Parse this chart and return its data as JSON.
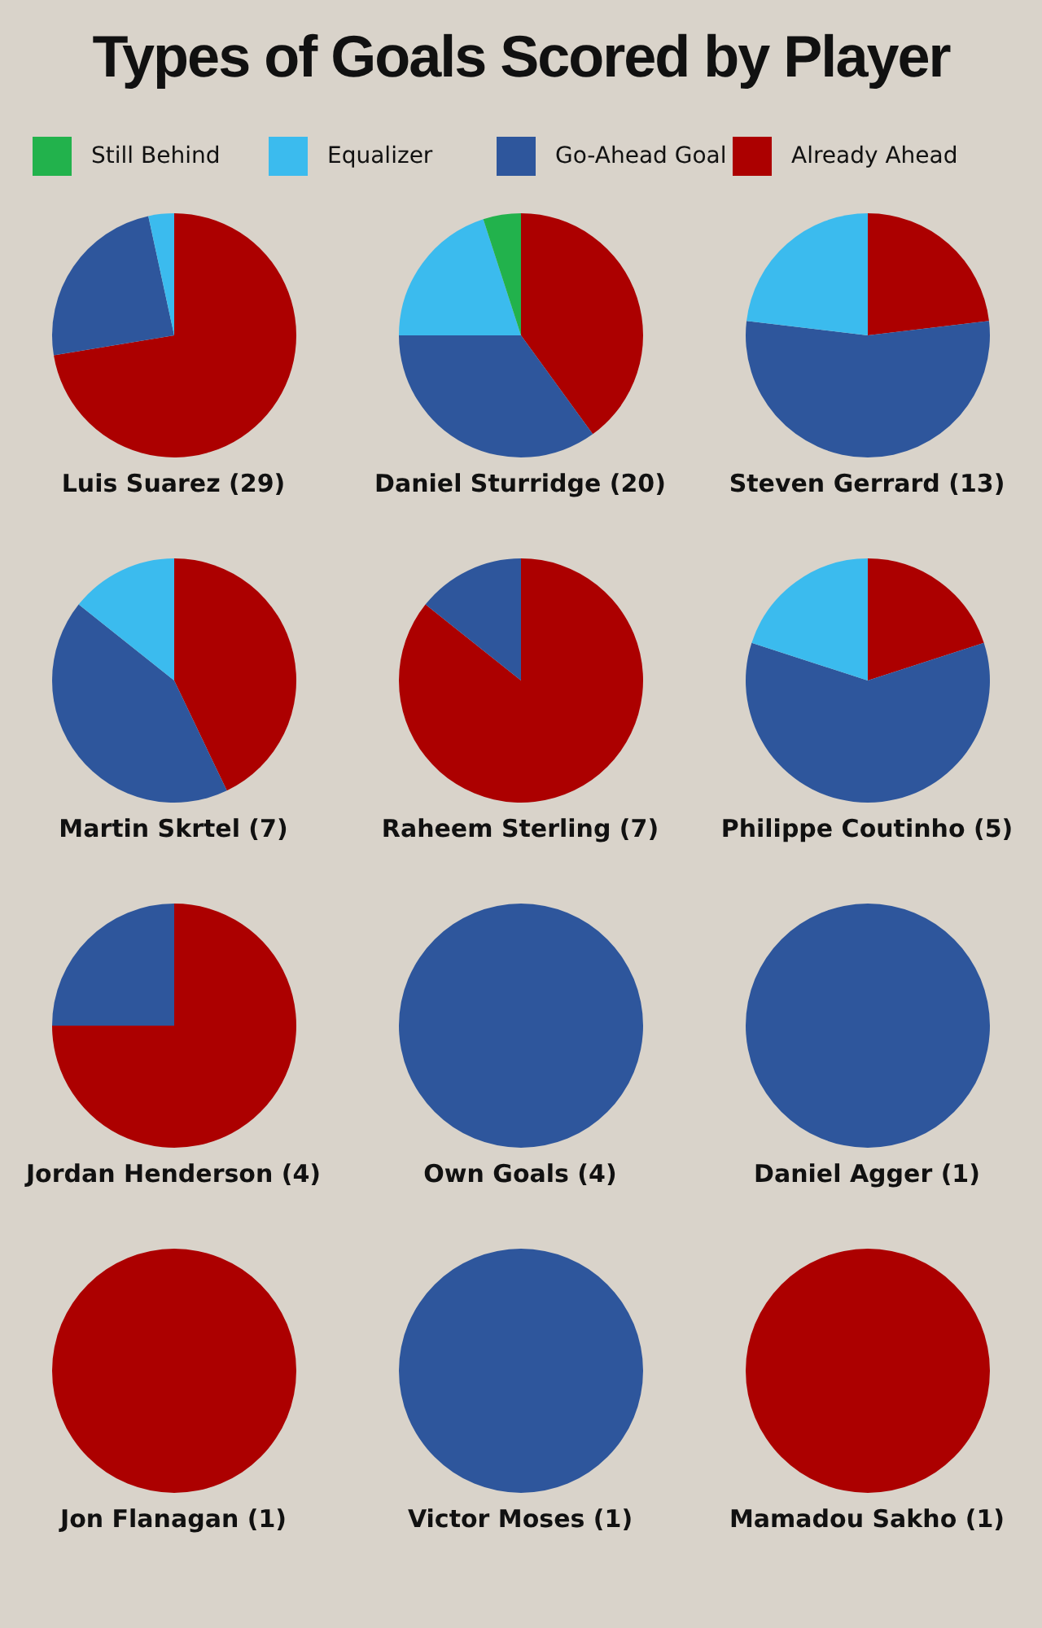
{
  "chart_data": [
    {
      "type": "pie",
      "title": "Types of Goals Scored by Player",
      "legend": "top",
      "xlabel": "Luis Suarez (29)",
      "categories": [
        "Still Behind",
        "Equalizer",
        "Go-Ahead Goal",
        "Already Ahead"
      ],
      "values": [
        0,
        3.4,
        24.2,
        72.4
      ],
      "colors": [
        "#22b24c",
        "#3bbbee",
        "#2e569c",
        "#ac0000"
      ]
    },
    {
      "type": "pie",
      "xlabel": "Daniel Sturridge (20)",
      "categories": [
        null,
        null,
        null,
        null
      ],
      "values": [
        5,
        20,
        35,
        40
      ],
      "colors": [
        "#22b24c",
        "#3bbbee",
        "#2e569c",
        "#ac0000"
      ]
    },
    {
      "type": "pie",
      "xlabel": "Steven Gerrard (13)",
      "categories": [
        null,
        null,
        null,
        null
      ],
      "values": [
        0,
        23.1,
        53.8,
        23.1
      ],
      "colors": [
        "#22b24c",
        "#3bbbee",
        "#2e569c",
        "#ac0000"
      ]
    },
    {
      "type": "pie",
      "xlabel": "Martin Skrtel (7)",
      "categories": [
        null,
        null,
        null,
        null
      ],
      "values": [
        0,
        14.3,
        42.8,
        42.9
      ],
      "colors": [
        "#22b24c",
        "#3bbbee",
        "#2e569c",
        "#ac0000"
      ]
    },
    {
      "type": "pie",
      "xlabel": "Raheem Sterling (7)",
      "categories": [
        null,
        null,
        null,
        null
      ],
      "values": [
        0,
        0,
        14.3,
        85.7
      ],
      "colors": [
        "#22b24c",
        "#3bbbee",
        "#2e569c",
        "#ac0000"
      ]
    },
    {
      "type": "pie",
      "xlabel": "Philippe Coutinho (5)",
      "categories": [
        null,
        null,
        null,
        null
      ],
      "values": [
        0,
        20,
        60,
        20
      ],
      "colors": [
        "#22b24c",
        "#3bbbee",
        "#2e569c",
        "#ac0000"
      ]
    },
    {
      "type": "pie",
      "xlabel": "Jordan Henderson (4)",
      "categories": [
        null,
        null,
        null,
        null
      ],
      "values": [
        0,
        0,
        25,
        75
      ],
      "colors": [
        "#22b24c",
        "#3bbbee",
        "#2e569c",
        "#ac0000"
      ]
    },
    {
      "type": "pie",
      "xlabel": "Own Goals (4)",
      "categories": [
        null,
        null,
        null,
        null
      ],
      "values": [
        0,
        0,
        100,
        0
      ],
      "colors": [
        "#22b24c",
        "#3bbbee",
        "#2e569c",
        "#ac0000"
      ]
    },
    {
      "type": "pie",
      "xlabel": "Daniel Agger (1)",
      "categories": [
        null,
        null,
        null,
        null
      ],
      "values": [
        0,
        0,
        100,
        0
      ],
      "colors": [
        "#22b24c",
        "#3bbbee",
        "#2e569c",
        "#ac0000"
      ]
    },
    {
      "type": "pie",
      "xlabel": "Jon Flanagan (1)",
      "categories": [
        null,
        null,
        null,
        null
      ],
      "values": [
        0,
        0,
        0,
        100
      ],
      "colors": [
        "#22b24c",
        "#3bbbee",
        "#2e569c",
        "#ac0000"
      ]
    },
    {
      "type": "pie",
      "xlabel": "Victor Moses (1)",
      "categories": [
        null,
        null,
        null,
        null
      ],
      "values": [
        0,
        0,
        100,
        0
      ],
      "colors": [
        "#22b24c",
        "#3bbbee",
        "#2e569c",
        "#ac0000"
      ]
    },
    {
      "type": "pie",
      "xlabel": "Mamadou Sakho (1)",
      "categories": [
        null,
        null,
        null,
        null
      ],
      "values": [
        0,
        0,
        0,
        100
      ],
      "colors": [
        "#22b24c",
        "#3bbbee",
        "#2e569c",
        "#ac0000"
      ]
    }
  ]
}
